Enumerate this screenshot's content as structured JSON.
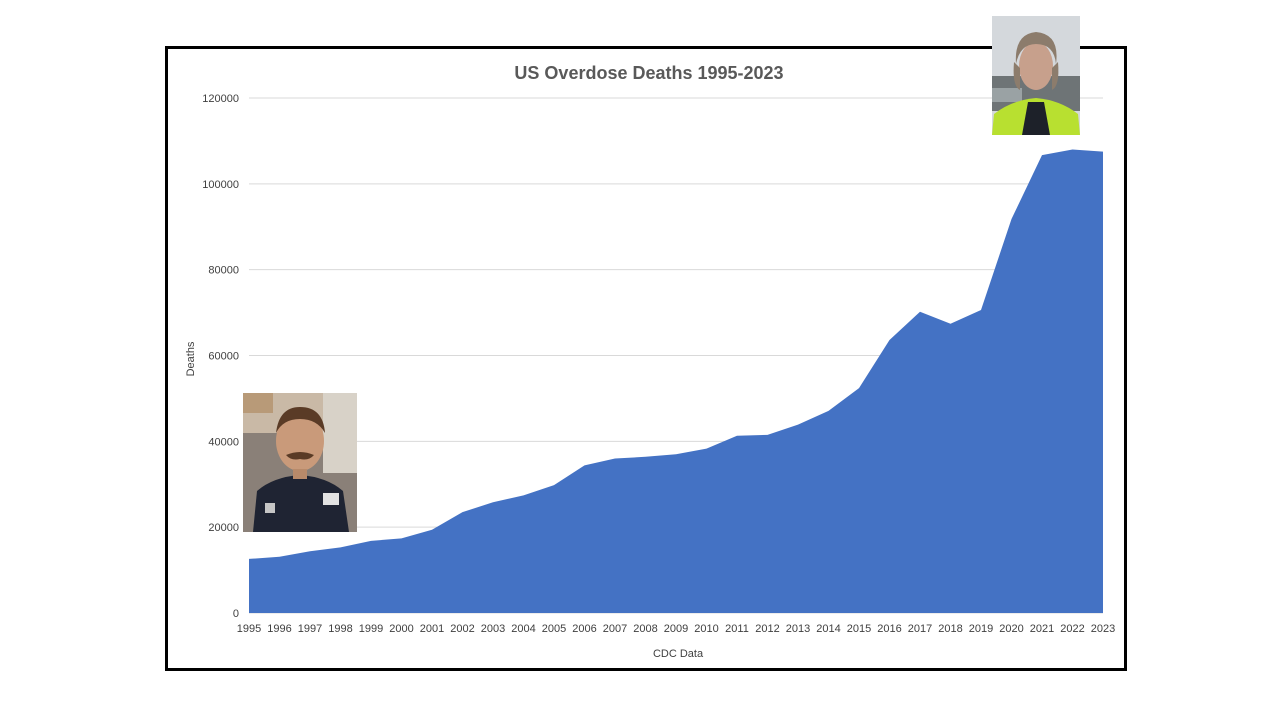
{
  "chart_data": {
    "type": "area",
    "title": "US Overdose Deaths 1995-2023",
    "xlabel": "CDC Data",
    "ylabel": "Deaths",
    "ylim": [
      0,
      120000
    ],
    "yticks": [
      "0",
      "20000",
      "40000",
      "60000",
      "80000",
      "100000",
      "120000"
    ],
    "grid": true,
    "fill_color": "#4472C4",
    "categories": [
      "1995",
      "1996",
      "1997",
      "1998",
      "1999",
      "2000",
      "2001",
      "2002",
      "2003",
      "2004",
      "2005",
      "2006",
      "2007",
      "2008",
      "2009",
      "2010",
      "2011",
      "2012",
      "2013",
      "2014",
      "2015",
      "2016",
      "2017",
      "2018",
      "2019",
      "2020",
      "2021",
      "2022",
      "2023"
    ],
    "series": [
      {
        "values": [
          12600,
          13100,
          14400,
          15300,
          16800,
          17400,
          19400,
          23500,
          25800,
          27400,
          29800,
          34400,
          36000,
          36400,
          37000,
          38300,
          41300,
          41500,
          43900,
          47100,
          52400,
          63600,
          70200,
          67400,
          70600,
          91800,
          106700,
          108000,
          107500
        ]
      }
    ]
  },
  "photos": [
    {
      "icon": "portrait-uniformed-man-photo"
    },
    {
      "icon": "portrait-older-man-hi-vis-photo"
    }
  ]
}
